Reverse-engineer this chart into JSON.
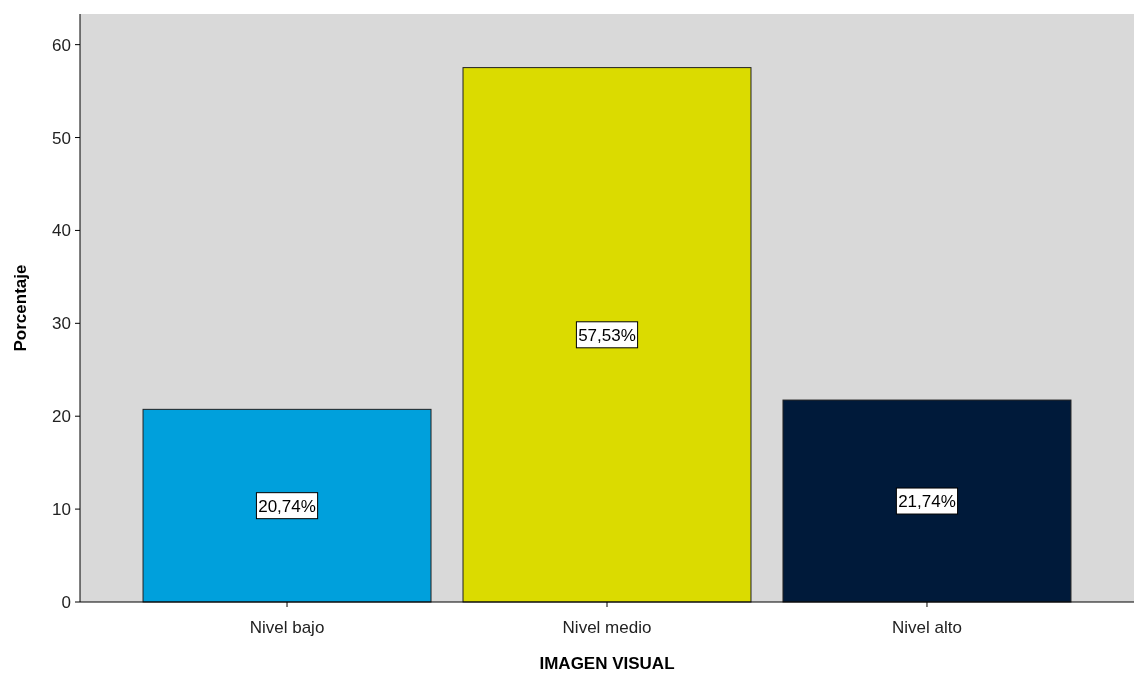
{
  "chart_data": {
    "type": "bar",
    "xlabel": "IMAGEN VISUAL",
    "ylabel": "Porcentaje",
    "categories": [
      "Nivel bajo",
      "Nivel medio",
      "Nivel alto"
    ],
    "values": [
      20.74,
      57.53,
      21.74
    ],
    "colors": [
      "#00a0dc",
      "#dbdb00",
      "#001a3a"
    ],
    "value_labels": [
      "20,74%",
      "57,53%",
      "21,74%"
    ],
    "ylim": [
      0,
      63.3
    ],
    "yticks": [
      0,
      10,
      20,
      30,
      40,
      50,
      60
    ],
    "grid": false
  }
}
